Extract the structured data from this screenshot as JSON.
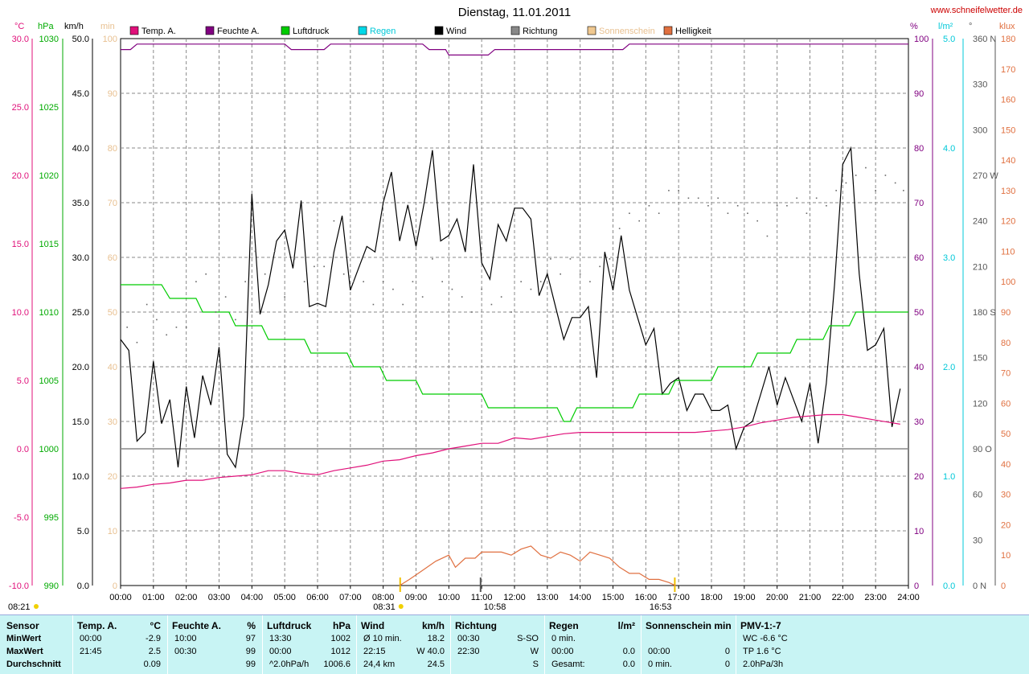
{
  "title": "Dienstag, 11.01.2011",
  "site": "www.schneifelwetter.de",
  "legend": [
    {
      "label": "Temp. A.",
      "color": "#e0107a"
    },
    {
      "label": "Feuchte A.",
      "color": "#800080"
    },
    {
      "label": "Luftdruck",
      "color": "#00cc00"
    },
    {
      "label": "Regen",
      "color": "#00d8e8"
    },
    {
      "label": "Wind",
      "color": "#000000"
    },
    {
      "label": "Richtung",
      "color": "#888888"
    },
    {
      "label": "Sonnenschein",
      "color": "#f0c890"
    },
    {
      "label": "Helligkeit",
      "color": "#e07040"
    }
  ],
  "axes": {
    "temp": {
      "unit": "°C",
      "color": "#e0107a",
      "ticks": [
        "30.0",
        "25.0",
        "20.0",
        "15.0",
        "10.0",
        "5.0",
        "0.0",
        "-5.0",
        "-10.0"
      ]
    },
    "hpa": {
      "unit": "hPa",
      "color": "#00aa00",
      "ticks": [
        "1030",
        "1025",
        "1020",
        "1015",
        "1010",
        "1005",
        "1000",
        "995",
        "990"
      ]
    },
    "kmh": {
      "unit": "km/h",
      "color": "#000000",
      "ticks": [
        "50.0",
        "45.0",
        "40.0",
        "35.0",
        "30.0",
        "25.0",
        "20.0",
        "15.0",
        "10.0",
        "5.0",
        "0.0"
      ]
    },
    "min": {
      "unit": "min",
      "color": "#e8c090",
      "ticks": [
        "100",
        "90",
        "80",
        "70",
        "60",
        "50",
        "40",
        "30",
        "20",
        "10",
        "0"
      ]
    },
    "pct": {
      "unit": "%",
      "color": "#800080",
      "ticks": [
        "100",
        "90",
        "80",
        "70",
        "60",
        "50",
        "40",
        "30",
        "20",
        "10",
        "0"
      ]
    },
    "rain": {
      "unit": "l/m²",
      "color": "#00c8d8",
      "ticks": [
        "5.0",
        "4.0",
        "3.0",
        "2.0",
        "1.0",
        "0.0"
      ]
    },
    "dir": {
      "unit": "°",
      "color": "#555555",
      "ticks": [
        "360 N",
        "330",
        "300",
        "270 W",
        "240",
        "210",
        "180 S",
        "150",
        "120",
        "90 O",
        "60",
        "30",
        "0 N"
      ]
    },
    "klux": {
      "unit": "klux",
      "color": "#e07040",
      "ticks": [
        "180",
        "170",
        "160",
        "150",
        "140",
        "130",
        "120",
        "110",
        "100",
        "90",
        "80",
        "70",
        "60",
        "50",
        "40",
        "30",
        "20",
        "10",
        "0"
      ]
    }
  },
  "x_ticks": [
    "00:00",
    "01:00",
    "02:00",
    "03:00",
    "04:00",
    "05:00",
    "06:00",
    "07:00",
    "08:00",
    "09:00",
    "10:00",
    "11:00",
    "12:00",
    "13:00",
    "14:00",
    "15:00",
    "16:00",
    "17:00",
    "18:00",
    "19:00",
    "20:00",
    "21:00",
    "22:00",
    "23:00",
    "24:00"
  ],
  "markers": {
    "sunrise": "08:31",
    "noon": "10:58",
    "sunset": "16:53",
    "left": "08:21"
  },
  "chart_data": {
    "type": "line",
    "x_unit": "hour of day",
    "xlim": [
      0,
      24
    ],
    "series": [
      {
        "name": "Wind",
        "unit": "km/h",
        "color": "#000000",
        "x": [
          0,
          0.25,
          0.5,
          0.75,
          1,
          1.25,
          1.5,
          1.75,
          2,
          2.25,
          2.5,
          2.75,
          3,
          3.25,
          3.5,
          3.75,
          4,
          4.25,
          4.5,
          4.75,
          5,
          5.25,
          5.5,
          5.75,
          6,
          6.25,
          6.5,
          6.75,
          7,
          7.25,
          7.5,
          7.75,
          8,
          8.25,
          8.5,
          8.75,
          9,
          9.25,
          9.5,
          9.75,
          10,
          10.25,
          10.5,
          10.75,
          11,
          11.25,
          11.5,
          11.75,
          12,
          12.25,
          12.5,
          12.75,
          13,
          13.25,
          13.5,
          13.75,
          14,
          14.25,
          14.5,
          14.75,
          15,
          15.25,
          15.5,
          15.75,
          16,
          16.25,
          16.5,
          16.75,
          17,
          17.25,
          17.5,
          17.75,
          18,
          18.25,
          18.5,
          18.75,
          19,
          19.25,
          19.5,
          19.75,
          20,
          20.25,
          20.5,
          20.75,
          21,
          21.25,
          21.5,
          21.75,
          22,
          22.25,
          22.5,
          22.75,
          23,
          23.25,
          23.5,
          23.75
        ],
        "values": [
          22.5,
          21.5,
          13.2,
          14.0,
          20.5,
          14.8,
          17.0,
          10.8,
          18.2,
          13.5,
          19.2,
          16.5,
          21.8,
          12.0,
          10.8,
          15.5,
          35.8,
          24.8,
          27.5,
          31.5,
          32.5,
          29.0,
          35.2,
          25.5,
          25.8,
          25.5,
          30.5,
          33.8,
          27.0,
          29.0,
          31.0,
          30.5,
          35.0,
          37.8,
          31.5,
          34.8,
          31.0,
          35.0,
          39.8,
          31.5,
          32.0,
          33.5,
          30.5,
          38.5,
          29.5,
          28.0,
          33.0,
          31.5,
          34.5,
          34.5,
          33.5,
          26.5,
          28.5,
          25.5,
          22.5,
          24.5,
          24.5,
          25.5,
          19.0,
          30.5,
          27.0,
          32.0,
          27.0,
          24.5,
          22.0,
          23.5,
          17.5,
          18.5,
          19.0,
          16.0,
          17.5,
          17.5,
          16.0,
          16.0,
          16.5,
          12.5,
          14.5,
          15.0,
          17.5,
          20.0,
          16.5,
          19.0,
          17.0,
          15.0,
          18.5,
          13.0,
          18.5,
          27.5,
          38.5,
          40.0,
          28.5,
          21.5,
          22.0,
          23.5,
          14.5,
          18.0
        ]
      },
      {
        "name": "Feuchte A.",
        "unit": "%",
        "color": "#800080",
        "x": [
          0,
          0.3,
          0.5,
          5,
          5.2,
          6.2,
          6.4,
          9.2,
          9.4,
          9.9,
          10.0,
          11.2,
          11.4,
          15.3,
          15.5,
          24
        ],
        "values": [
          98,
          98,
          99,
          99,
          98,
          98,
          99,
          99,
          98,
          98,
          97,
          97,
          98,
          98,
          99,
          99
        ]
      },
      {
        "name": "Temp. A.",
        "unit": "°C",
        "color": "#e0107a",
        "x": [
          0,
          0.5,
          1,
          1.5,
          2,
          2.5,
          3,
          3.5,
          4,
          4.5,
          5,
          5.5,
          6,
          6.5,
          7,
          7.5,
          8,
          8.5,
          9,
          9.5,
          10,
          10.5,
          11,
          11.5,
          12,
          12.5,
          13,
          13.5,
          14,
          14.5,
          15,
          15.5,
          16,
          16.5,
          17,
          17.5,
          18,
          18.5,
          19,
          19.5,
          20,
          20.5,
          21,
          21.5,
          22,
          22.5,
          23,
          23.5,
          23.75
        ],
        "values": [
          -2.9,
          -2.8,
          -2.6,
          -2.5,
          -2.3,
          -2.3,
          -2.1,
          -2.0,
          -1.9,
          -1.6,
          -1.6,
          -1.8,
          -1.9,
          -1.6,
          -1.4,
          -1.2,
          -0.9,
          -0.8,
          -0.5,
          -0.3,
          0.0,
          0.2,
          0.4,
          0.4,
          0.8,
          0.7,
          0.9,
          1.1,
          1.2,
          1.2,
          1.2,
          1.2,
          1.2,
          1.2,
          1.2,
          1.2,
          1.3,
          1.4,
          1.6,
          1.9,
          2.1,
          2.3,
          2.4,
          2.5,
          2.5,
          2.3,
          2.1,
          1.9,
          1.8
        ]
      },
      {
        "name": "Luftdruck",
        "unit": "hPa",
        "color": "#00cc00",
        "x": [
          0,
          1.25,
          1.5,
          2.3,
          2.5,
          3.3,
          3.5,
          4.3,
          4.5,
          5.6,
          5.8,
          6.9,
          7.1,
          7.9,
          8.1,
          9.0,
          9.2,
          11.0,
          11.2,
          13.3,
          13.5,
          13.7,
          13.9,
          15.6,
          15.8,
          16.7,
          16.9,
          18.0,
          18.2,
          19.2,
          19.4,
          20.4,
          20.6,
          21.4,
          21.6,
          22.2,
          22.4,
          22.6,
          22.8,
          24
        ],
        "values": [
          1012,
          1012,
          1011,
          1011,
          1010,
          1010,
          1009,
          1009,
          1008,
          1008,
          1007,
          1007,
          1006,
          1006,
          1005,
          1005,
          1004,
          1004,
          1003,
          1003,
          1002,
          1002,
          1003,
          1003,
          1004,
          1004,
          1005,
          1005,
          1006,
          1006,
          1007,
          1007,
          1008,
          1008,
          1009,
          1009,
          1010,
          1010,
          1010,
          1010
        ]
      },
      {
        "name": "Helligkeit",
        "unit": "klux",
        "color": "#e07040",
        "x": [
          8.5,
          8.8,
          9.2,
          9.6,
          10.0,
          10.2,
          10.5,
          10.8,
          11.0,
          11.3,
          11.6,
          11.9,
          12.2,
          12.5,
          12.8,
          13.1,
          13.4,
          13.7,
          14.0,
          14.3,
          14.6,
          14.9,
          15.2,
          15.5,
          15.8,
          16.1,
          16.4,
          16.7,
          16.9
        ],
        "values": [
          0,
          2,
          5,
          8,
          10,
          6,
          9,
          9,
          11,
          11,
          11,
          10,
          12,
          13,
          10,
          9,
          11,
          10,
          8,
          11,
          10,
          9,
          6,
          4,
          4,
          2,
          2,
          1,
          0
        ]
      },
      {
        "name": "Richtung",
        "unit": "°",
        "color": "#888888",
        "type": "scatter",
        "x": [
          0.2,
          0.5,
          0.8,
          1.1,
          1.4,
          1.7,
          2.0,
          2.3,
          2.6,
          2.9,
          3.2,
          3.5,
          3.8,
          4.1,
          4.4,
          4.7,
          5.0,
          5.3,
          5.6,
          5.9,
          6.2,
          6.5,
          6.8,
          7.1,
          7.4,
          7.7,
          8.0,
          8.3,
          8.6,
          8.9,
          9.2,
          9.5,
          9.8,
          10.1,
          10.4,
          10.7,
          11.0,
          11.3,
          11.6,
          11.9,
          12.2,
          12.5,
          12.8,
          13.1,
          13.4,
          13.7,
          14.0,
          14.3,
          14.6,
          14.9,
          15.2,
          15.5,
          15.8,
          16.1,
          16.4,
          16.7,
          17.0,
          17.3,
          17.6,
          17.9,
          18.2,
          18.5,
          18.8,
          19.1,
          19.4,
          19.7,
          20.0,
          20.3,
          20.6,
          20.9,
          21.2,
          21.5,
          21.8,
          22.1,
          22.4,
          22.7,
          23.0,
          23.3,
          23.6,
          23.85
        ],
        "values": [
          170,
          160,
          185,
          175,
          165,
          170,
          170,
          200,
          205,
          180,
          190,
          175,
          200,
          220,
          205,
          220,
          190,
          215,
          200,
          210,
          210,
          240,
          205,
          200,
          200,
          185,
          200,
          195,
          185,
          200,
          190,
          215,
          200,
          195,
          190,
          180,
          195,
          185,
          190,
          180,
          200,
          195,
          200,
          215,
          205,
          215,
          205,
          200,
          210,
          215,
          235,
          245,
          240,
          250,
          245,
          260,
          260,
          255,
          255,
          250,
          255,
          245,
          250,
          245,
          240,
          230,
          250,
          250,
          255,
          245,
          255,
          250,
          260,
          265,
          270,
          275,
          260,
          270,
          265,
          260
        ]
      }
    ],
    "axes_ranges": {
      "km/h": [
        0,
        50
      ],
      "°C": [
        -10,
        30
      ],
      "hPa": [
        990,
        1030
      ],
      "%": [
        0,
        100
      ],
      "l/m²": [
        0,
        5
      ],
      "°": [
        0,
        360
      ],
      "klux": [
        0,
        180
      ],
      "min": [
        0,
        100
      ]
    }
  },
  "summary": {
    "row_labels": [
      "Sensor",
      "MinWert",
      "MaxWert",
      "Durchschnitt"
    ],
    "columns": [
      {
        "head": "Temp. A.",
        "unit": "°C",
        "rows": [
          [
            "00:00",
            "-2.9"
          ],
          [
            "21:45",
            "2.5"
          ],
          [
            "",
            "0.09"
          ]
        ]
      },
      {
        "head": "Feuchte A.",
        "unit": "%",
        "rows": [
          [
            "10:00",
            "97"
          ],
          [
            "00:30",
            "99"
          ],
          [
            "",
            "99"
          ]
        ]
      },
      {
        "head": "Luftdruck",
        "unit": "hPa",
        "rows": [
          [
            "13:30",
            "1002"
          ],
          [
            "00:00",
            "1012"
          ],
          [
            "^2.0hPa/h",
            "1006.6"
          ]
        ]
      },
      {
        "head": "Wind",
        "unit": "km/h",
        "rows": [
          [
            "Ø 10 min.",
            "18.2"
          ],
          [
            "22:15",
            "W 40.0"
          ],
          [
            "24,4 km",
            "24.5"
          ]
        ]
      },
      {
        "head": "Richtung",
        "unit": "",
        "rows": [
          [
            "00:30",
            "S-SO"
          ],
          [
            "22:30",
            "W"
          ],
          [
            "",
            "S"
          ]
        ]
      },
      {
        "head": "Regen",
        "unit": "l/m²",
        "rows": [
          [
            "0 min.",
            ""
          ],
          [
            "00:00",
            "0.0"
          ],
          [
            "Gesamt:",
            "0.0"
          ]
        ]
      },
      {
        "head": "Sonnenschein min",
        "unit": "",
        "rows": [
          [
            "",
            ""
          ],
          [
            "00:00",
            "0"
          ],
          [
            "0 min.",
            "0"
          ]
        ]
      },
      {
        "head": "PMV-1:-7",
        "unit": "",
        "rows": [
          [
            "WC -6.6 °C",
            ""
          ],
          [
            "TP 1.6 °C",
            ""
          ],
          [
            "2.0hPa/3h",
            ""
          ]
        ]
      }
    ]
  }
}
